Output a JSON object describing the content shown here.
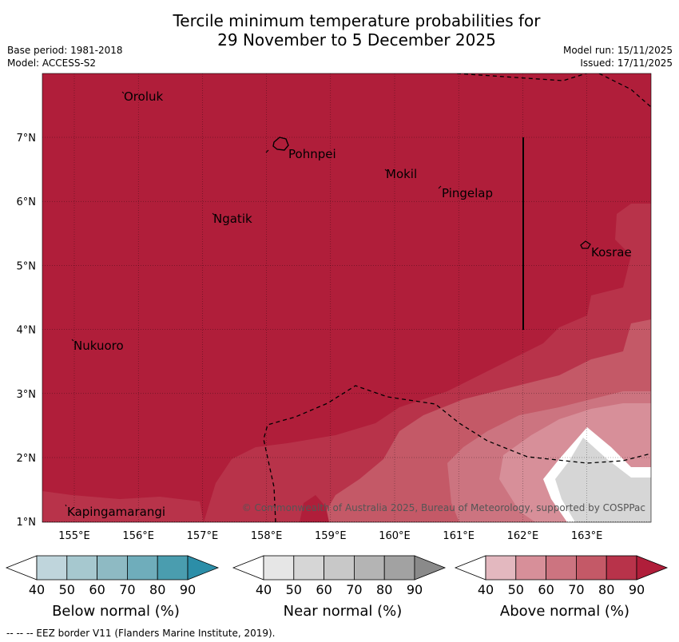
{
  "title": {
    "line1": "Tercile minimum temperature probabilities for",
    "line2": "29 November to 5 December 2025"
  },
  "meta": {
    "base_period": "Base period: 1981-2018",
    "model": "Model: ACCESS-S2",
    "model_run": "Model run: 15/11/2025",
    "issued": "Issued: 17/11/2025"
  },
  "map": {
    "copyright": "© Commonwealth of Australia 2025, Bureau of Meteorology, supported by COSPPac",
    "lon_ticks": [
      "155°E",
      "156°E",
      "157°E",
      "158°E",
      "159°E",
      "160°E",
      "161°E",
      "162°E",
      "163°E"
    ],
    "lat_ticks": [
      "7°N",
      "6°N",
      "5°N",
      "4°N",
      "3°N",
      "2°N",
      "1°N"
    ],
    "places": [
      {
        "name": "Oroluk"
      },
      {
        "name": "Pohnpei"
      },
      {
        "name": "Mokil"
      },
      {
        "name": "Pingelap"
      },
      {
        "name": "Ngatik"
      },
      {
        "name": "Kosrae"
      },
      {
        "name": "Nukuoro"
      },
      {
        "name": "Kapingamarangi"
      }
    ]
  },
  "colorbars": [
    {
      "name": "below",
      "title": "Below normal (%)",
      "ticks": [
        "40",
        "50",
        "60",
        "70",
        "80",
        "90"
      ],
      "colors": [
        "#bfd5dc",
        "#a6c8cf",
        "#8ebac3",
        "#6fadbb",
        "#4a9daf",
        "#2c8ea8"
      ]
    },
    {
      "name": "near",
      "title": "Near normal (%)",
      "ticks": [
        "40",
        "50",
        "60",
        "70",
        "80",
        "90"
      ],
      "colors": [
        "#e6e6e6",
        "#d6d6d6",
        "#c8c8c8",
        "#b4b4b4",
        "#a2a2a2",
        "#8a8a8a"
      ]
    },
    {
      "name": "above",
      "title": "Above normal (%)",
      "ticks": [
        "40",
        "50",
        "60",
        "70",
        "80",
        "90"
      ],
      "colors": [
        "#e3b8bf",
        "#d78f99",
        "#cc7480",
        "#c45967",
        "#b8334a",
        "#b01e3a"
      ]
    }
  ],
  "footer": "--  --  -- EEZ border V11 (Flanders Marine Institute, 2019)."
}
